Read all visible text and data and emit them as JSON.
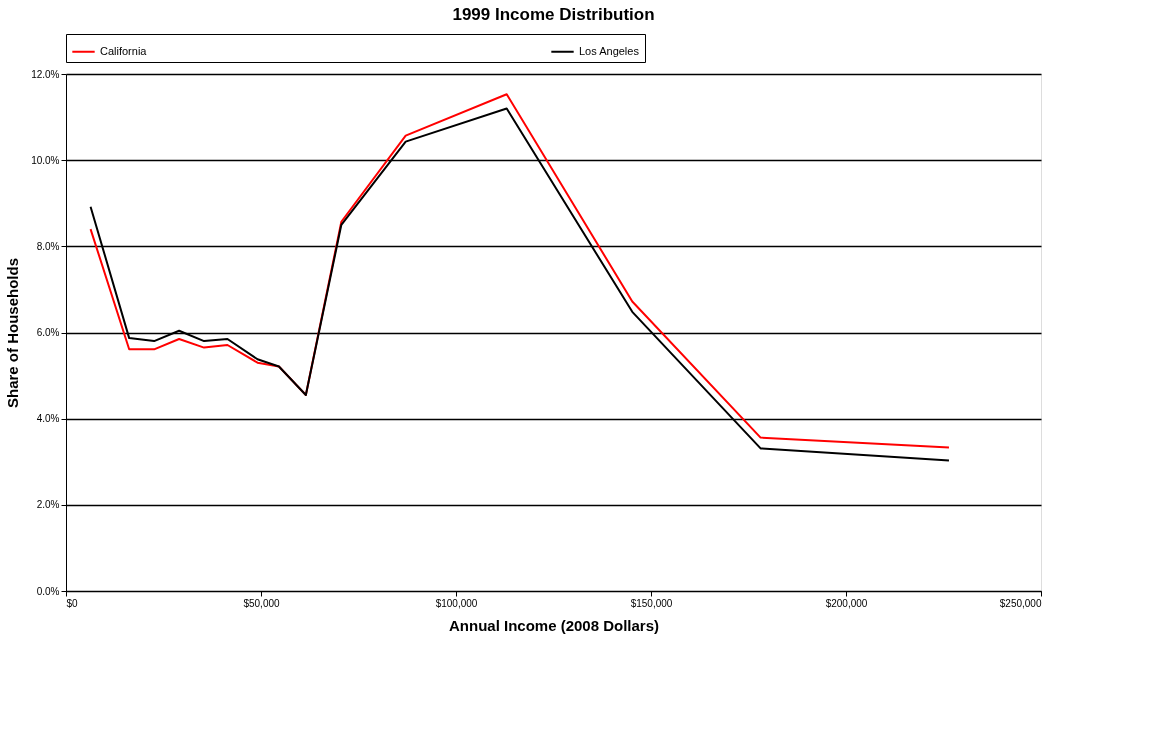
{
  "chart_data": {
    "type": "line",
    "title": "1999 Income Distribution",
    "xlabel": "Annual Income (2008 Dollars)",
    "ylabel": "Share of Households",
    "x": [
      6300,
      16200,
      22600,
      29000,
      35400,
      41400,
      49100,
      54600,
      61500,
      70600,
      87100,
      113000,
      145200,
      178100,
      226400
    ],
    "series": [
      {
        "name": "California",
        "color": "#ff0000",
        "values": [
          8.4,
          5.61,
          5.61,
          5.85,
          5.65,
          5.71,
          5.3,
          5.21,
          4.55,
          8.57,
          10.57,
          11.53,
          6.72,
          3.56,
          3.33
        ]
      },
      {
        "name": "Los Angeles",
        "color": "#000000",
        "values": [
          8.92,
          5.87,
          5.8,
          6.04,
          5.8,
          5.85,
          5.38,
          5.21,
          4.55,
          8.5,
          10.43,
          11.2,
          6.48,
          3.31,
          3.03
        ]
      }
    ],
    "xlim": [
      0,
      250000
    ],
    "xticks": [
      {
        "value": 0,
        "label": "$0"
      },
      {
        "value": 50000,
        "label": "$50,000"
      },
      {
        "value": 100000,
        "label": "$100,000"
      },
      {
        "value": 150000,
        "label": "$150,000"
      },
      {
        "value": 200000,
        "label": "$200,000"
      },
      {
        "value": 250000,
        "label": "$250,000"
      }
    ],
    "ylim": [
      0,
      12
    ],
    "yticks": [
      {
        "value": 0,
        "label": "0.0%"
      },
      {
        "value": 2,
        "label": "2.0%"
      },
      {
        "value": 4,
        "label": "4.0%"
      },
      {
        "value": 6,
        "label": "6.0%"
      },
      {
        "value": 8,
        "label": "8.0%"
      },
      {
        "value": 10,
        "label": "10.0%"
      },
      {
        "value": 12,
        "label": "12.0%"
      }
    ],
    "grid": "y",
    "legend": "top",
    "marker": "none",
    "line_style": "solid"
  }
}
